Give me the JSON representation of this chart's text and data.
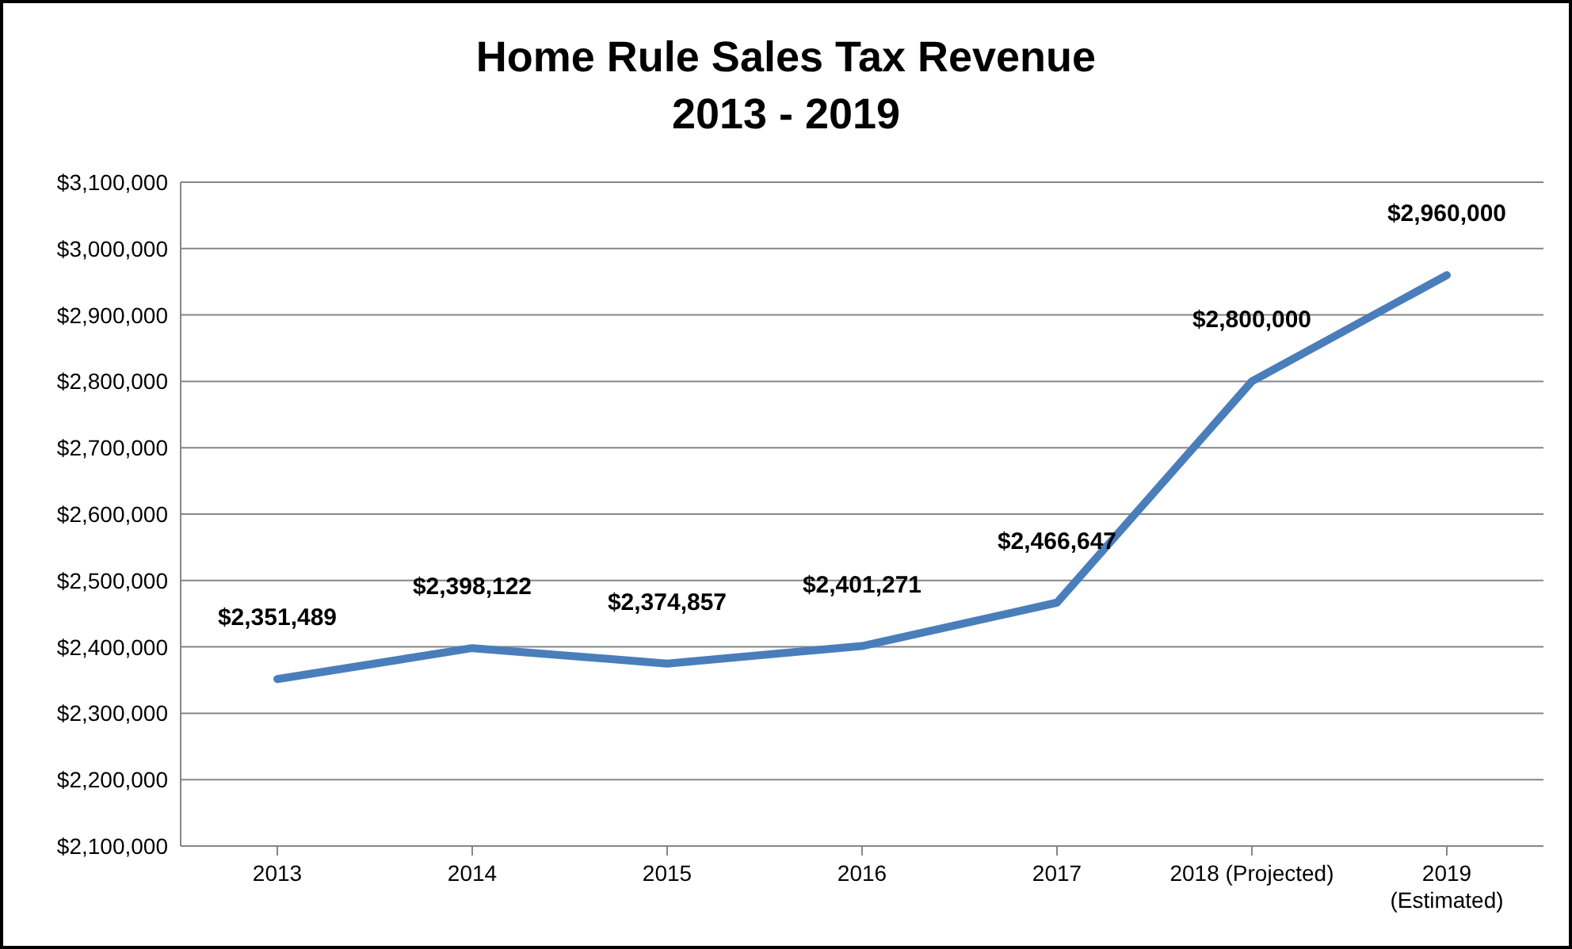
{
  "chart_data": {
    "type": "line",
    "title": "Home Rule Sales Tax Revenue\n2013 - 2019",
    "categories": [
      "2013",
      "2014",
      "2015",
      "2016",
      "2017",
      "2018 (Projected)",
      "2019\n(Estimated)"
    ],
    "series": [
      {
        "color": "#4a7ebb",
        "values": [
          2351489,
          2398122,
          2374857,
          2401271,
          2466647,
          2800000,
          2960000
        ],
        "value_labels": [
          "$2,351,489",
          "$2,398,122",
          "$2,374,857",
          "$2,401,271",
          "$2,466,647",
          "$2,800,000",
          "$2,960,000"
        ]
      }
    ],
    "ylim": [
      2100000,
      3100000
    ],
    "yticks": [
      {
        "value": 2100000,
        "label": "$2,100,000"
      },
      {
        "value": 2200000,
        "label": "$2,200,000"
      },
      {
        "value": 2300000,
        "label": "$2,300,000"
      },
      {
        "value": 2400000,
        "label": "$2,400,000"
      },
      {
        "value": 2500000,
        "label": "$2,500,000"
      },
      {
        "value": 2600000,
        "label": "$2,600,000"
      },
      {
        "value": 2700000,
        "label": "$2,700,000"
      },
      {
        "value": 2800000,
        "label": "$2,800,000"
      },
      {
        "value": 2900000,
        "label": "$2,900,000"
      },
      {
        "value": 3000000,
        "label": "$3,000,000"
      },
      {
        "value": 3100000,
        "label": "$3,100,000"
      }
    ],
    "grid": "y",
    "legend": false,
    "marker": "none",
    "line_style": "solid"
  }
}
